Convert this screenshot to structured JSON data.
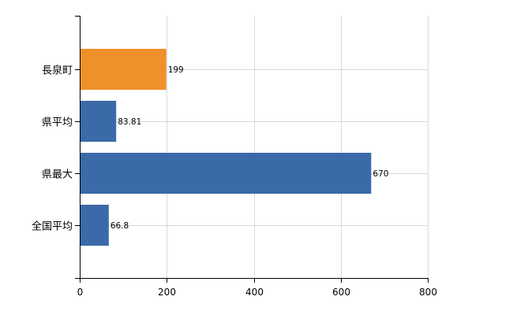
{
  "chart_data": {
    "type": "bar",
    "orientation": "horizontal",
    "categories": [
      "長泉町",
      "県平均",
      "県最大",
      "全国平均"
    ],
    "values": [
      199,
      83.81,
      670,
      66.8
    ],
    "value_labels": [
      "199",
      "83.81",
      "670",
      "66.8"
    ],
    "bar_colors": [
      "#f0902a",
      "#3a6aa8",
      "#3a6aa8",
      "#3a6aa8"
    ],
    "xlim": [
      0,
      800
    ],
    "x_ticks": [
      0,
      200,
      400,
      600,
      800
    ],
    "x_tick_labels": [
      "0",
      "200",
      "400",
      "600",
      "800"
    ],
    "grid": true,
    "title": "",
    "xlabel": "",
    "ylabel": ""
  }
}
